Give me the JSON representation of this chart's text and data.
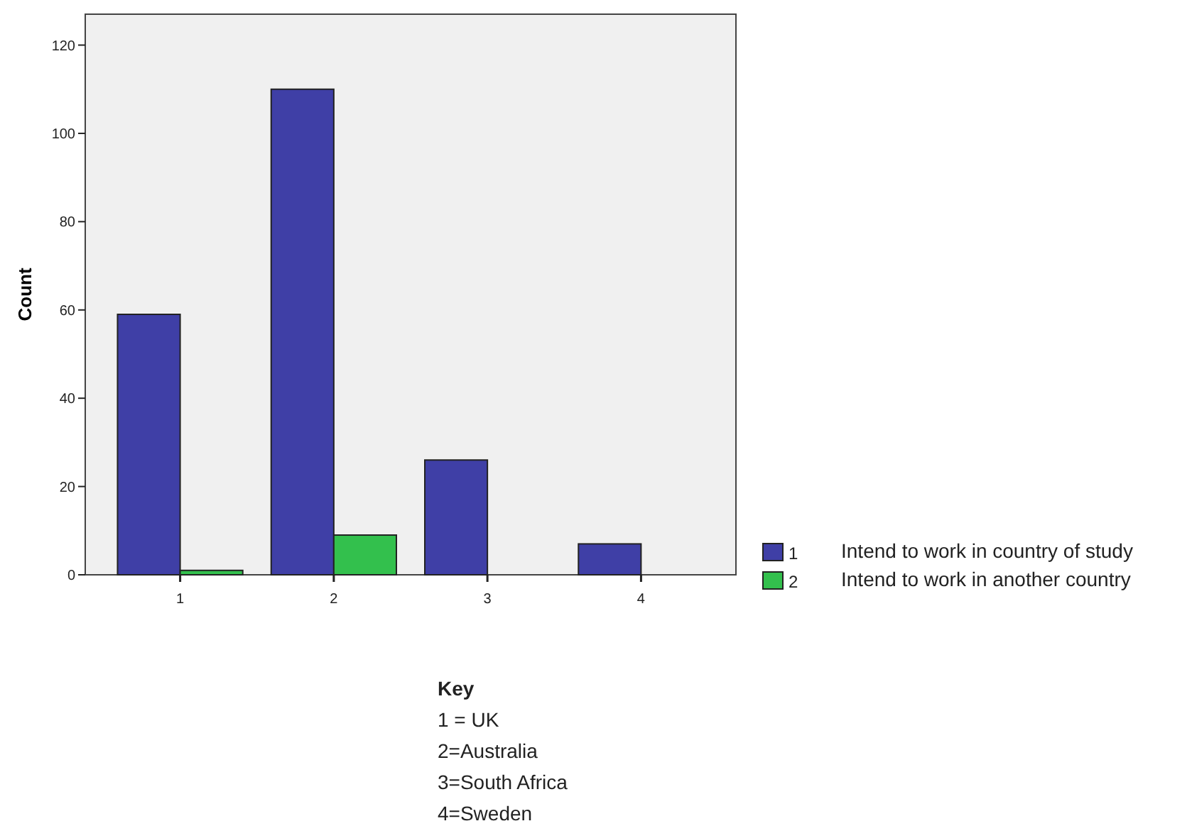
{
  "chart_data": {
    "type": "bar",
    "ylabel": "Count",
    "categories": [
      "1",
      "2",
      "3",
      "4"
    ],
    "series": [
      {
        "name": "1",
        "color": "#3f3fa6",
        "values": [
          59,
          110,
          26,
          7
        ]
      },
      {
        "name": "2",
        "color": "#33c04d",
        "values": [
          1,
          9,
          null,
          null
        ]
      }
    ],
    "ylim": [
      0,
      127
    ],
    "yticks": [
      0,
      20,
      40,
      60,
      80,
      100,
      120
    ],
    "grid": false,
    "legend": "right",
    "annotations": [
      "Intend to work in country of study",
      "Intend to work in another country",
      "Key",
      "1 = UK",
      "2=Australia",
      "3=South Africa",
      "4=Sweden"
    ]
  }
}
